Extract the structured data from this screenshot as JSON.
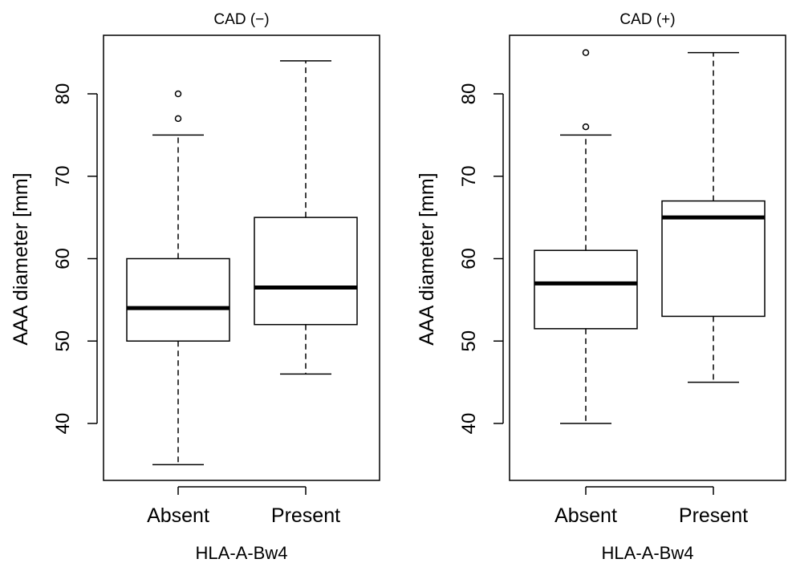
{
  "chart_data": [
    {
      "type": "box",
      "title": "CAD (−)",
      "xlabel": "HLA-A-Bw4",
      "ylabel": "AAA diameter [mm]",
      "yticks": [
        40,
        50,
        60,
        70,
        80
      ],
      "ylim": [
        33,
        86
      ],
      "categories": [
        "Absent",
        "Present"
      ],
      "boxes": [
        {
          "category": "Absent",
          "min": 35,
          "q1": 50,
          "median": 54,
          "q3": 60,
          "max": 75,
          "outliers": [
            77,
            80
          ]
        },
        {
          "category": "Present",
          "min": 46,
          "q1": 52,
          "median": 56.5,
          "q3": 65,
          "max": 84,
          "outliers": []
        }
      ]
    },
    {
      "type": "box",
      "title": "CAD (+)",
      "xlabel": "HLA-A-Bw4",
      "ylabel": "AAA diameter [mm]",
      "yticks": [
        40,
        50,
        60,
        70,
        80
      ],
      "ylim": [
        33,
        86
      ],
      "categories": [
        "Absent",
        "Present"
      ],
      "boxes": [
        {
          "category": "Absent",
          "min": 40,
          "q1": 51.5,
          "median": 57,
          "q3": 61,
          "max": 75,
          "outliers": [
            76,
            85
          ]
        },
        {
          "category": "Present",
          "min": 45,
          "q1": 53,
          "median": 65,
          "q3": 67,
          "max": 85,
          "outliers": []
        }
      ]
    }
  ]
}
